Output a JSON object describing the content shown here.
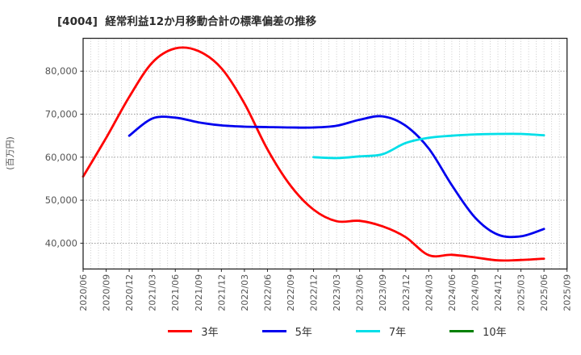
{
  "title": "[4004]  経常利益12か月移動合計の標準偏差の推移",
  "chart_data": {
    "type": "line",
    "title": "[4004]  経常利益12か月移動合計の標準偏差の推移",
    "xlabel": "",
    "ylabel": "(百万円)",
    "ylim": [
      34000,
      87640
    ],
    "yticks": [
      40000,
      50000,
      60000,
      70000,
      80000
    ],
    "ytick_labels": [
      "40,000",
      "50,000",
      "60,000",
      "70,000",
      "80,000"
    ],
    "grid": "dotted; vertical line every month, horizontal line at each y tick",
    "legend_position": "bottom-center",
    "categories": [
      "2020/06",
      "2020/09",
      "2020/12",
      "2021/03",
      "2021/06",
      "2021/09",
      "2021/12",
      "2022/03",
      "2022/06",
      "2022/09",
      "2022/12",
      "2023/03",
      "2023/06",
      "2023/09",
      "2023/12",
      "2024/03",
      "2024/06",
      "2024/09",
      "2024/12",
      "2025/03",
      "2025/06",
      "2025/09"
    ],
    "series": [
      {
        "name": "3年",
        "color": "#ff0000",
        "values": [
          55500,
          64500,
          74000,
          82000,
          85300,
          84700,
          80700,
          72500,
          61800,
          53400,
          47800,
          45100,
          45200,
          43900,
          41400,
          37200,
          37300,
          36700,
          36000,
          36100,
          36400,
          null
        ]
      },
      {
        "name": "5年",
        "color": "#0000ee",
        "values": [
          null,
          null,
          65000,
          69000,
          69200,
          68100,
          67400,
          67100,
          67000,
          66900,
          66900,
          67300,
          68700,
          69500,
          67300,
          62000,
          53500,
          46000,
          42000,
          41600,
          43300,
          null
        ]
      },
      {
        "name": "7年",
        "color": "#00dfe8",
        "values": [
          null,
          null,
          null,
          null,
          null,
          null,
          null,
          null,
          null,
          null,
          60000,
          59800,
          60200,
          60700,
          63300,
          64500,
          65000,
          65300,
          65400,
          65400,
          65100,
          null
        ]
      },
      {
        "name": "10年",
        "color": "#008000",
        "values": [
          null,
          null,
          null,
          null,
          null,
          null,
          null,
          null,
          null,
          null,
          null,
          null,
          null,
          null,
          null,
          null,
          null,
          null,
          null,
          null,
          null,
          null
        ]
      }
    ]
  },
  "style_colors": {
    "border": "#262626",
    "grid_vertical": "#bfbfbf",
    "grid_horizontal": "#8c8c8c",
    "tick_text": "#555555",
    "title_text": "#2b2b2b"
  }
}
